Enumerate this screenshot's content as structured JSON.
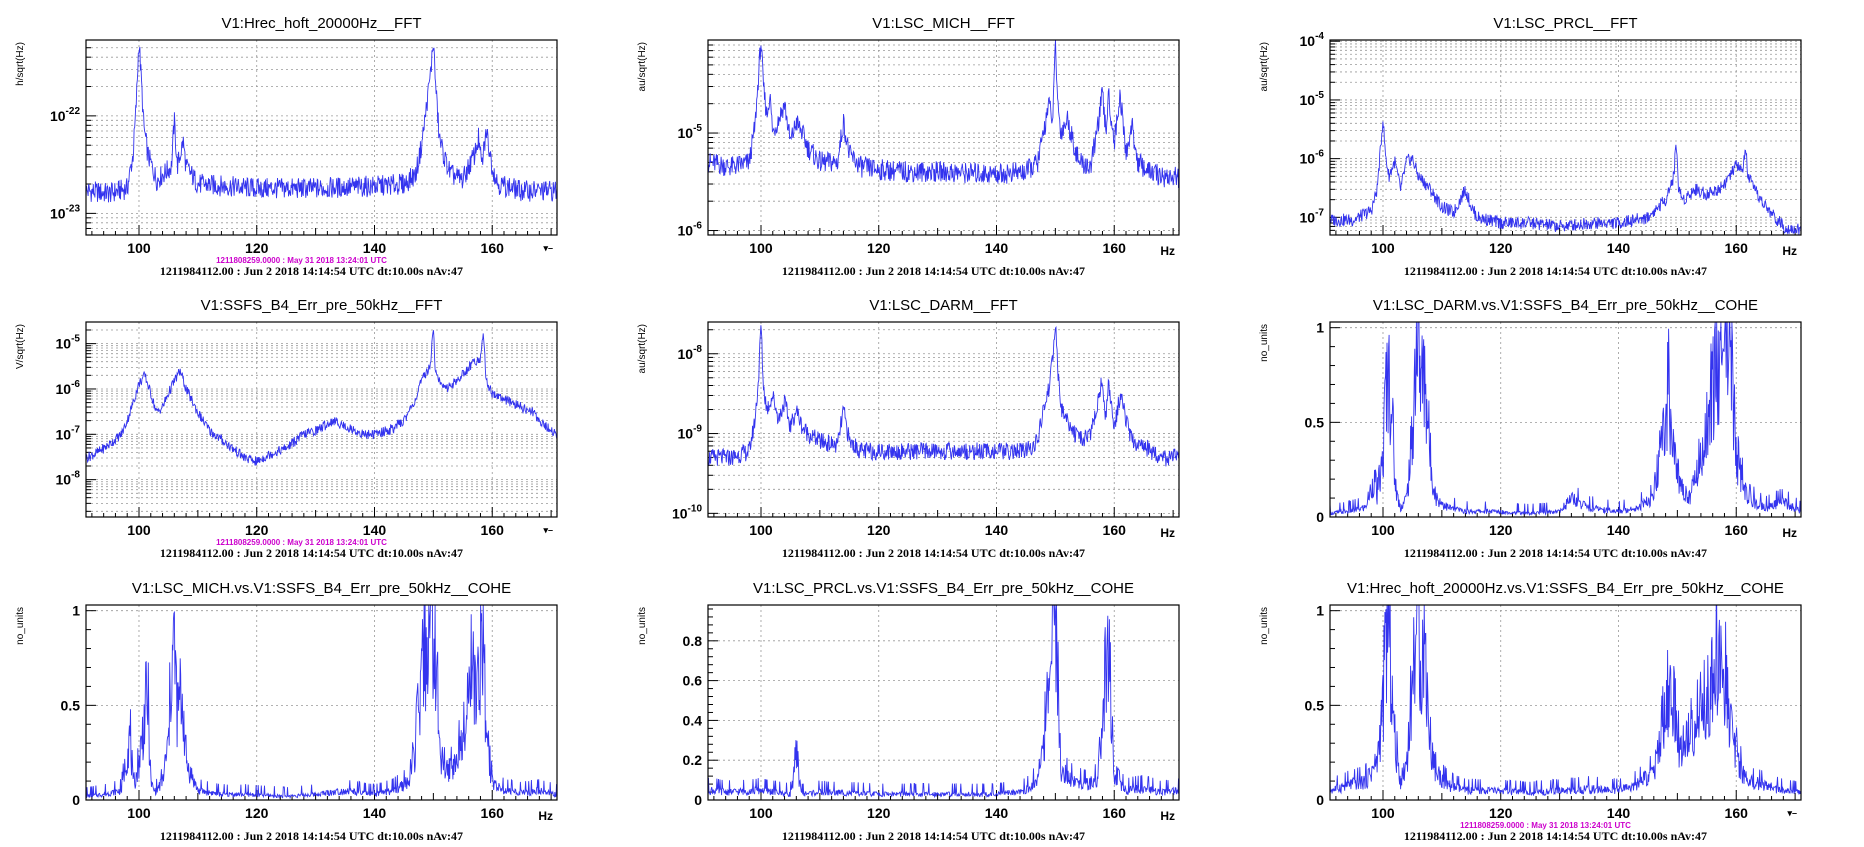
{
  "colors": {
    "trace": "#3333ee",
    "stamp": "#cc00cc",
    "grid": "#999999"
  },
  "footer": "1211984112.00 : Jun  2 2018 14:14:54 UTC dt:10.00s nAv:47",
  "reference_stamp": "1211808259.0000 : May 31 2018 13:24:01 UTC",
  "x_unit": "Hz",
  "corner_mark": "▾–",
  "chart_data": [
    {
      "type": "line",
      "title": "V1:Hrec_hoft_20000Hz__FFT",
      "ylabel": "h/sqrt(Hz)",
      "yscale": "log",
      "xlim": [
        91,
        171
      ],
      "ylim": [
        6e-24,
        6e-22
      ],
      "xticks": [
        100,
        120,
        140,
        160
      ],
      "yticks": [
        {
          "v": 1e-23,
          "label": "10^-23"
        },
        {
          "v": 1e-22,
          "label": "10^-22"
        }
      ],
      "show_unit": false,
      "reference_stamp": true,
      "corner_mark": true,
      "x": [
        91,
        95,
        98,
        99,
        99.5,
        100,
        100.3,
        100.8,
        101.5,
        103,
        105.5,
        106,
        106.5,
        107,
        107.5,
        108,
        110,
        120,
        130,
        140,
        145,
        147,
        148,
        149,
        149.6,
        150,
        150.4,
        151,
        152,
        153,
        155,
        156,
        157,
        157.7,
        158.2,
        159,
        160,
        161,
        165,
        171
      ],
      "values": [
        1.7e-23,
        1.6e-23,
        1.8e-23,
        4e-23,
        1.2e-22,
        6e-22,
        3e-22,
        8e-23,
        4e-23,
        2.2e-23,
        3e-23,
        9e-23,
        3e-23,
        4e-23,
        5.5e-23,
        3e-23,
        2e-23,
        1.8e-23,
        1.8e-23,
        1.9e-23,
        2e-23,
        2.5e-23,
        5e-23,
        1.5e-22,
        3e-22,
        6e-22,
        2e-22,
        6e-23,
        3.5e-23,
        2.5e-23,
        2.2e-23,
        3e-23,
        4e-23,
        6e-23,
        3e-23,
        7e-23,
        3e-23,
        2e-23,
        1.7e-23,
        1.7e-23
      ]
    },
    {
      "type": "line",
      "title": "V1:LSC_MICH__FFT",
      "ylabel": "au/sqrt(Hz)",
      "yscale": "log",
      "xlim": [
        91,
        171
      ],
      "ylim": [
        9e-07,
        9e-05
      ],
      "xticks": [
        100,
        120,
        140,
        160
      ],
      "yticks": [
        {
          "v": 1e-06,
          "label": "10^-6"
        },
        {
          "v": 1e-05,
          "label": "10^-5"
        }
      ],
      "show_unit": true,
      "reference_stamp": false,
      "corner_mark": false,
      "x": [
        91,
        95,
        98,
        99,
        99.6,
        100,
        100.4,
        101,
        101.5,
        102,
        103,
        104,
        105,
        106,
        107,
        108,
        110,
        113,
        114,
        115,
        117,
        120,
        125,
        130,
        140,
        145,
        147,
        148,
        148.8,
        149.6,
        150,
        150.4,
        151,
        152,
        154,
        156,
        157,
        158,
        158.6,
        159,
        160,
        161,
        162,
        163,
        164,
        166,
        168,
        171
      ],
      "values": [
        5e-06,
        4.5e-06,
        5e-06,
        1.2e-05,
        4e-05,
        9e-05,
        3e-05,
        1.5e-05,
        2.5e-05,
        1e-05,
        1.4e-05,
        2e-05,
        8e-06,
        1.3e-05,
        1e-05,
        7e-06,
        5e-06,
        5e-06,
        1.3e-05,
        6e-06,
        4.5e-06,
        4.2e-06,
        4e-06,
        4e-06,
        3.8e-06,
        4e-06,
        5e-06,
        1e-05,
        2e-05,
        1.4e-05,
        9e-05,
        2e-05,
        1e-05,
        1.4e-05,
        5e-06,
        4.5e-06,
        1e-05,
        2.5e-05,
        1e-05,
        2.5e-05,
        8e-06,
        2.5e-05,
        6e-06,
        1.2e-05,
        5e-06,
        4e-06,
        3.6e-06,
        3.5e-06
      ]
    },
    {
      "type": "line",
      "title": "V1:LSC_PRCL__FFT",
      "ylabel": "au/sqrt(Hz)",
      "yscale": "log",
      "xlim": [
        91,
        171
      ],
      "ylim": [
        5e-08,
        0.000105
      ],
      "xticks": [
        100,
        120,
        140,
        160
      ],
      "yticks": [
        {
          "v": 1e-07,
          "label": "10^-7"
        },
        {
          "v": 1e-06,
          "label": "10^-6"
        },
        {
          "v": 1e-05,
          "label": "10^-5"
        },
        {
          "v": 0.0001,
          "label": "10^-4"
        }
      ],
      "show_unit": true,
      "reference_stamp": false,
      "corner_mark": false,
      "x": [
        91,
        95,
        98,
        99,
        99.6,
        100,
        100.4,
        101,
        102,
        103,
        104,
        105,
        106,
        107,
        108,
        110,
        112,
        114,
        115,
        116,
        118,
        120,
        125,
        130,
        135,
        140,
        145,
        148,
        149.4,
        149.8,
        150.2,
        151,
        153,
        155,
        157,
        159,
        160,
        161,
        161.6,
        162,
        163,
        165,
        168,
        171
      ],
      "values": [
        9e-08,
        9e-08,
        1.3e-07,
        3e-07,
        1.5e-06,
        5e-06,
        1.2e-06,
        5e-07,
        9e-07,
        3e-07,
        9e-07,
        1e-06,
        5e-07,
        4e-07,
        3e-07,
        1.5e-07,
        1.2e-07,
        3e-07,
        1.5e-07,
        1e-07,
        9e-08,
        8e-08,
        8e-08,
        7e-08,
        8e-08,
        8e-08,
        1e-07,
        2e-07,
        5e-07,
        2.2e-06,
        3e-07,
        2e-07,
        3e-07,
        2.5e-07,
        3e-07,
        5e-07,
        8e-07,
        6e-07,
        1.4e-06,
        5e-07,
        3e-07,
        1.5e-07,
        7e-08,
        6e-08
      ]
    },
    {
      "type": "line",
      "title": "V1:SSFS_B4_Err_pre_50kHz__FFT",
      "ylabel": "V/sqrt(Hz)",
      "yscale": "log",
      "xlim": [
        91,
        171
      ],
      "ylim": [
        1.5e-09,
        3e-05
      ],
      "xticks": [
        100,
        120,
        140,
        160
      ],
      "yticks": [
        {
          "v": 1e-08,
          "label": "10^-8"
        },
        {
          "v": 1e-07,
          "label": "10^-7"
        },
        {
          "v": 1e-06,
          "label": "10^-6"
        },
        {
          "v": 1e-05,
          "label": "10^-5"
        }
      ],
      "show_unit": false,
      "reference_stamp": true,
      "corner_mark": true,
      "x": [
        91,
        93,
        95,
        97,
        98,
        99,
        100,
        101,
        102,
        103,
        104,
        105,
        106,
        107,
        108,
        110,
        112,
        115,
        118,
        120,
        122,
        125,
        128,
        130,
        133,
        135,
        138,
        140,
        143,
        145,
        147,
        148,
        149,
        149.6,
        150,
        150.3,
        151,
        152,
        154,
        156,
        157,
        158,
        158.5,
        159,
        160,
        161,
        163,
        165,
        167,
        169,
        171
      ],
      "values": [
        3e-08,
        4e-08,
        6e-08,
        1e-07,
        2e-07,
        5e-07,
        1.3e-06,
        2e-06,
        8e-07,
        3e-07,
        4e-07,
        8e-07,
        1.5e-06,
        2.5e-06,
        1e-06,
        3e-07,
        1.2e-07,
        6e-08,
        3e-08,
        2.5e-08,
        3.5e-08,
        5e-08,
        1e-07,
        1.2e-07,
        2e-07,
        1.5e-07,
        1e-07,
        1e-07,
        1.3e-07,
        2e-07,
        6e-07,
        1.5e-06,
        2.5e-06,
        4e-06,
        3e-05,
        3e-06,
        1.5e-06,
        1e-06,
        1.5e-06,
        3e-06,
        4e-06,
        5e-06,
        1.5e-05,
        1.5e-06,
        8e-07,
        7e-07,
        5e-07,
        4e-07,
        3e-07,
        1.5e-07,
        1e-07
      ]
    },
    {
      "type": "line",
      "title": "V1:LSC_DARM__FFT",
      "ylabel": "au/sqrt(Hz)",
      "yscale": "log",
      "xlim": [
        91,
        171
      ],
      "ylim": [
        9e-11,
        2.5e-08
      ],
      "xticks": [
        100,
        120,
        140,
        160
      ],
      "yticks": [
        {
          "v": 1e-10,
          "label": "10^-10"
        },
        {
          "v": 1e-09,
          "label": "10^-9"
        },
        {
          "v": 1e-08,
          "label": "10^-8"
        }
      ],
      "show_unit": true,
      "reference_stamp": false,
      "corner_mark": false,
      "x": [
        91,
        95,
        98,
        99,
        99.6,
        100,
        100.4,
        101,
        102,
        103,
        104,
        105,
        106,
        107,
        108,
        110,
        113,
        114,
        115,
        117,
        120,
        125,
        130,
        135,
        140,
        145,
        147,
        148,
        149,
        149.5,
        150,
        150.5,
        151,
        152,
        154,
        156,
        157,
        158,
        158.5,
        159,
        160,
        161,
        162,
        163,
        165,
        168,
        171
      ],
      "values": [
        5e-10,
        5e-10,
        6e-10,
        1.5e-09,
        5e-09,
        2.5e-08,
        4e-09,
        2e-09,
        3e-09,
        1.5e-09,
        2.5e-09,
        1.2e-09,
        2e-09,
        1.2e-09,
        1e-09,
        8e-10,
        7e-10,
        2e-09,
        8e-10,
        6e-10,
        6e-10,
        6e-10,
        6e-10,
        6e-10,
        6e-10,
        6e-10,
        8e-10,
        2e-09,
        4e-09,
        8e-09,
        2.5e-08,
        5e-09,
        2e-09,
        1.5e-09,
        8e-10,
        1e-09,
        2e-09,
        5e-09,
        1.5e-09,
        4e-09,
        1.2e-09,
        3e-09,
        1.5e-09,
        8e-10,
        7e-10,
        5e-10,
        5e-10
      ]
    },
    {
      "type": "line",
      "title": "V1:LSC_DARM.vs.V1:SSFS_B4_Err_pre_50kHz__COHE",
      "ylabel": "no_units",
      "yscale": "linear",
      "xlim": [
        91,
        171
      ],
      "ylim": [
        0,
        1.03
      ],
      "xticks": [
        100,
        120,
        140,
        160
      ],
      "yticks": [
        {
          "v": 0,
          "label": "0"
        },
        {
          "v": 0.5,
          "label": "0.5"
        },
        {
          "v": 1,
          "label": "1"
        }
      ],
      "show_unit": true,
      "reference_stamp": false,
      "corner_mark": false,
      "x": [
        91,
        94,
        97,
        98.5,
        99,
        100,
        100.5,
        101,
        101.5,
        102,
        102.5,
        103,
        104,
        105,
        105.5,
        106,
        106.5,
        107,
        107.5,
        108,
        109,
        111,
        114,
        118,
        125,
        130,
        132,
        135,
        140,
        143,
        146,
        147,
        148,
        148.5,
        149,
        149.5,
        150,
        151,
        152,
        154,
        155,
        156,
        157,
        157.5,
        158,
        158.5,
        159,
        159.5,
        160,
        162,
        165,
        168,
        171
      ],
      "values": [
        0.02,
        0.03,
        0.05,
        0.2,
        0.1,
        0.3,
        0.7,
        0.75,
        0.6,
        0.2,
        0.1,
        0.05,
        0.1,
        0.4,
        0.85,
        0.95,
        0.7,
        0.75,
        0.6,
        0.3,
        0.1,
        0.05,
        0.03,
        0.03,
        0.02,
        0.03,
        0.1,
        0.05,
        0.03,
        0.05,
        0.1,
        0.3,
        0.55,
        0.7,
        0.45,
        0.35,
        0.2,
        0.15,
        0.1,
        0.3,
        0.5,
        0.7,
        0.85,
        0.9,
        0.75,
        0.95,
        0.98,
        0.6,
        0.3,
        0.1,
        0.05,
        0.08,
        0.03
      ]
    },
    {
      "type": "line",
      "title": "V1:LSC_MICH.vs.V1:SSFS_B4_Err_pre_50kHz__COHE",
      "ylabel": "no_units",
      "yscale": "linear",
      "xlim": [
        91,
        171
      ],
      "ylim": [
        0,
        1.03
      ],
      "xticks": [
        100,
        120,
        140,
        160
      ],
      "yticks": [
        {
          "v": 0,
          "label": "0"
        },
        {
          "v": 0.5,
          "label": "0.5"
        },
        {
          "v": 1,
          "label": "1"
        }
      ],
      "show_unit": true,
      "reference_stamp": false,
      "corner_mark": false,
      "x": [
        91,
        94,
        97,
        98.5,
        99,
        100,
        101,
        101.5,
        102,
        102.5,
        103,
        104,
        105,
        105.5,
        106,
        106.5,
        107,
        107.5,
        108,
        110,
        114,
        118,
        125,
        130,
        135,
        140,
        143,
        146,
        147,
        148,
        148.5,
        149,
        149.5,
        150,
        150.5,
        151,
        152,
        154,
        155,
        156,
        156.5,
        157,
        157.5,
        158,
        158.5,
        159,
        160,
        162,
        165,
        168,
        171
      ],
      "values": [
        0.02,
        0.03,
        0.05,
        0.35,
        0.05,
        0.2,
        0.45,
        0.55,
        0.1,
        0.05,
        0.05,
        0.1,
        0.3,
        0.7,
        0.83,
        0.45,
        0.55,
        0.5,
        0.2,
        0.05,
        0.03,
        0.03,
        0.02,
        0.03,
        0.05,
        0.03,
        0.05,
        0.1,
        0.3,
        0.6,
        0.8,
        0.85,
        0.9,
        0.95,
        0.7,
        0.3,
        0.15,
        0.2,
        0.4,
        0.6,
        0.7,
        0.65,
        0.5,
        0.85,
        0.9,
        0.3,
        0.1,
        0.05,
        0.04,
        0.05,
        0.03
      ]
    },
    {
      "type": "line",
      "title": "V1:LSC_PRCL.vs.V1:SSFS_B4_Err_pre_50kHz__COHE",
      "ylabel": "no_units",
      "yscale": "linear",
      "xlim": [
        91,
        171
      ],
      "ylim": [
        0,
        0.98
      ],
      "xticks": [
        100,
        120,
        140,
        160
      ],
      "yticks": [
        {
          "v": 0,
          "label": "0"
        },
        {
          "v": 0.2,
          "label": "0.2"
        },
        {
          "v": 0.4,
          "label": "0.4"
        },
        {
          "v": 0.6,
          "label": "0.6"
        },
        {
          "v": 0.8,
          "label": "0.8"
        }
      ],
      "show_unit": true,
      "reference_stamp": false,
      "corner_mark": false,
      "x": [
        91,
        95,
        100,
        105,
        106,
        107,
        110,
        120,
        130,
        140,
        145,
        147,
        148,
        149,
        149.5,
        150,
        150.5,
        151,
        153,
        155,
        157,
        158,
        158.5,
        159,
        159.5,
        160,
        162,
        165,
        168,
        171
      ],
      "values": [
        0.05,
        0.04,
        0.05,
        0.03,
        0.2,
        0.03,
        0.04,
        0.03,
        0.03,
        0.03,
        0.05,
        0.1,
        0.3,
        0.5,
        0.8,
        0.95,
        0.6,
        0.15,
        0.1,
        0.08,
        0.1,
        0.3,
        0.7,
        0.83,
        0.4,
        0.1,
        0.05,
        0.06,
        0.04,
        0.05
      ]
    },
    {
      "type": "line",
      "title": "V1:Hrec_hoft_20000Hz.vs.V1:SSFS_B4_Err_pre_50kHz__COHE",
      "ylabel": "no_units",
      "yscale": "linear",
      "xlim": [
        91,
        171
      ],
      "ylim": [
        0,
        1.03
      ],
      "xticks": [
        100,
        120,
        140,
        160
      ],
      "yticks": [
        {
          "v": 0,
          "label": "0"
        },
        {
          "v": 0.5,
          "label": "0.5"
        },
        {
          "v": 1,
          "label": "1"
        }
      ],
      "show_unit": false,
      "reference_stamp": true,
      "corner_mark": true,
      "x": [
        91,
        94,
        97,
        99,
        100,
        100.5,
        101,
        101.5,
        102,
        103,
        104,
        105,
        105.5,
        106,
        106.5,
        107,
        107.5,
        108,
        109,
        111,
        114,
        118,
        125,
        130,
        135,
        140,
        143,
        146,
        147,
        148,
        149,
        149.5,
        150,
        150.5,
        151,
        152,
        154,
        155,
        156,
        157,
        157.5,
        158,
        158.5,
        159,
        160,
        161,
        162,
        165,
        168,
        171
      ],
      "values": [
        0.05,
        0.08,
        0.1,
        0.2,
        0.5,
        0.85,
        0.9,
        0.6,
        0.3,
        0.1,
        0.2,
        0.6,
        0.9,
        0.95,
        0.7,
        0.85,
        0.6,
        0.3,
        0.15,
        0.08,
        0.05,
        0.05,
        0.04,
        0.05,
        0.06,
        0.05,
        0.08,
        0.15,
        0.3,
        0.5,
        0.6,
        0.45,
        0.35,
        0.25,
        0.3,
        0.35,
        0.45,
        0.55,
        0.65,
        0.75,
        0.8,
        0.7,
        0.55,
        0.4,
        0.25,
        0.15,
        0.1,
        0.08,
        0.05,
        0.04
      ]
    }
  ]
}
